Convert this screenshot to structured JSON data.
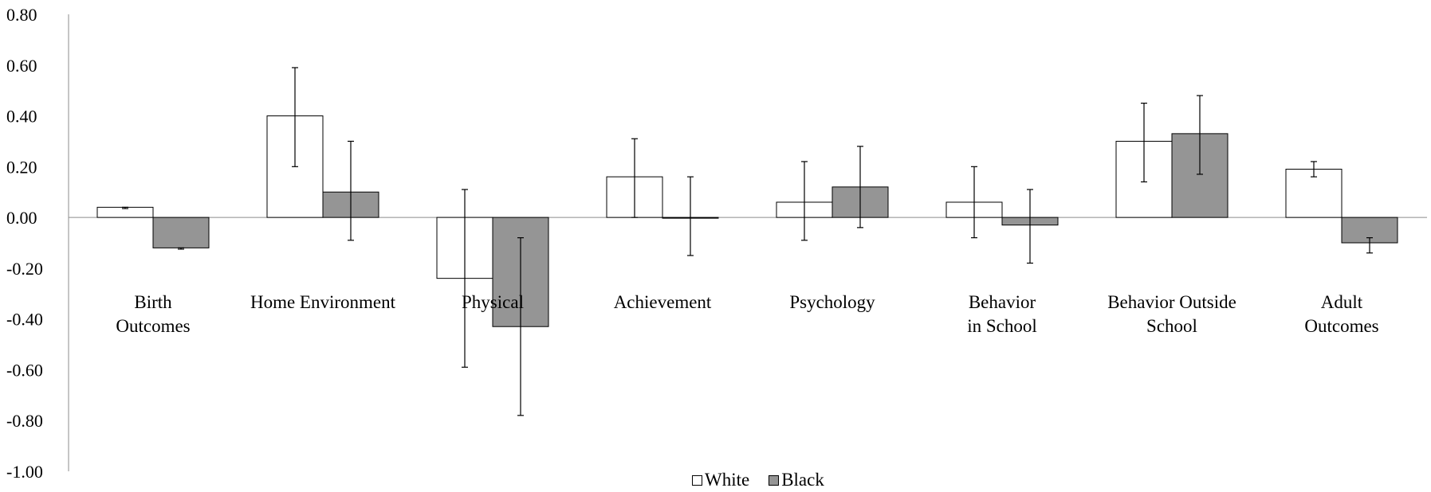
{
  "chart_data": {
    "type": "bar",
    "categories": [
      [
        "Birth",
        "Outcomes"
      ],
      [
        "Home Environment"
      ],
      [
        "Physical"
      ],
      [
        "Achievement"
      ],
      [
        "Psychology"
      ],
      [
        "Behavior",
        "in School"
      ],
      [
        "Behavior Outside",
        "School"
      ],
      [
        "Adult",
        "Outcomes"
      ]
    ],
    "series": [
      {
        "name": "White",
        "color": "#ffffff",
        "values": [
          0.04,
          0.4,
          -0.24,
          0.16,
          0.06,
          0.06,
          0.3,
          0.19
        ],
        "err_low": [
          0.035,
          0.2,
          -0.59,
          0.0,
          -0.09,
          -0.08,
          0.14,
          0.16
        ],
        "err_high": [
          0.04,
          0.59,
          0.11,
          0.31,
          0.22,
          0.2,
          0.45,
          0.22
        ]
      },
      {
        "name": "Black",
        "color": "#959595",
        "values": [
          -0.12,
          0.1,
          -0.43,
          0.0,
          0.12,
          -0.03,
          0.33,
          -0.1
        ],
        "err_low": [
          -0.125,
          -0.09,
          -0.78,
          -0.15,
          -0.04,
          -0.18,
          0.17,
          -0.14
        ],
        "err_high": [
          -0.12,
          0.3,
          -0.08,
          0.16,
          0.28,
          0.11,
          0.48,
          -0.08
        ]
      }
    ],
    "ylim": [
      -1.0,
      0.8
    ],
    "yticks": [
      "0.80",
      "0.60",
      "0.40",
      "0.20",
      "0.00",
      "-0.20",
      "-0.40",
      "-0.60",
      "-0.80",
      "-1.00"
    ],
    "ytick_values": [
      0.8,
      0.6,
      0.4,
      0.2,
      0.0,
      -0.2,
      -0.4,
      -0.6,
      -0.8,
      -1.0
    ],
    "xlabel": "",
    "ylabel": "",
    "title": "",
    "legend_position": "bottom-center",
    "grid": false
  }
}
